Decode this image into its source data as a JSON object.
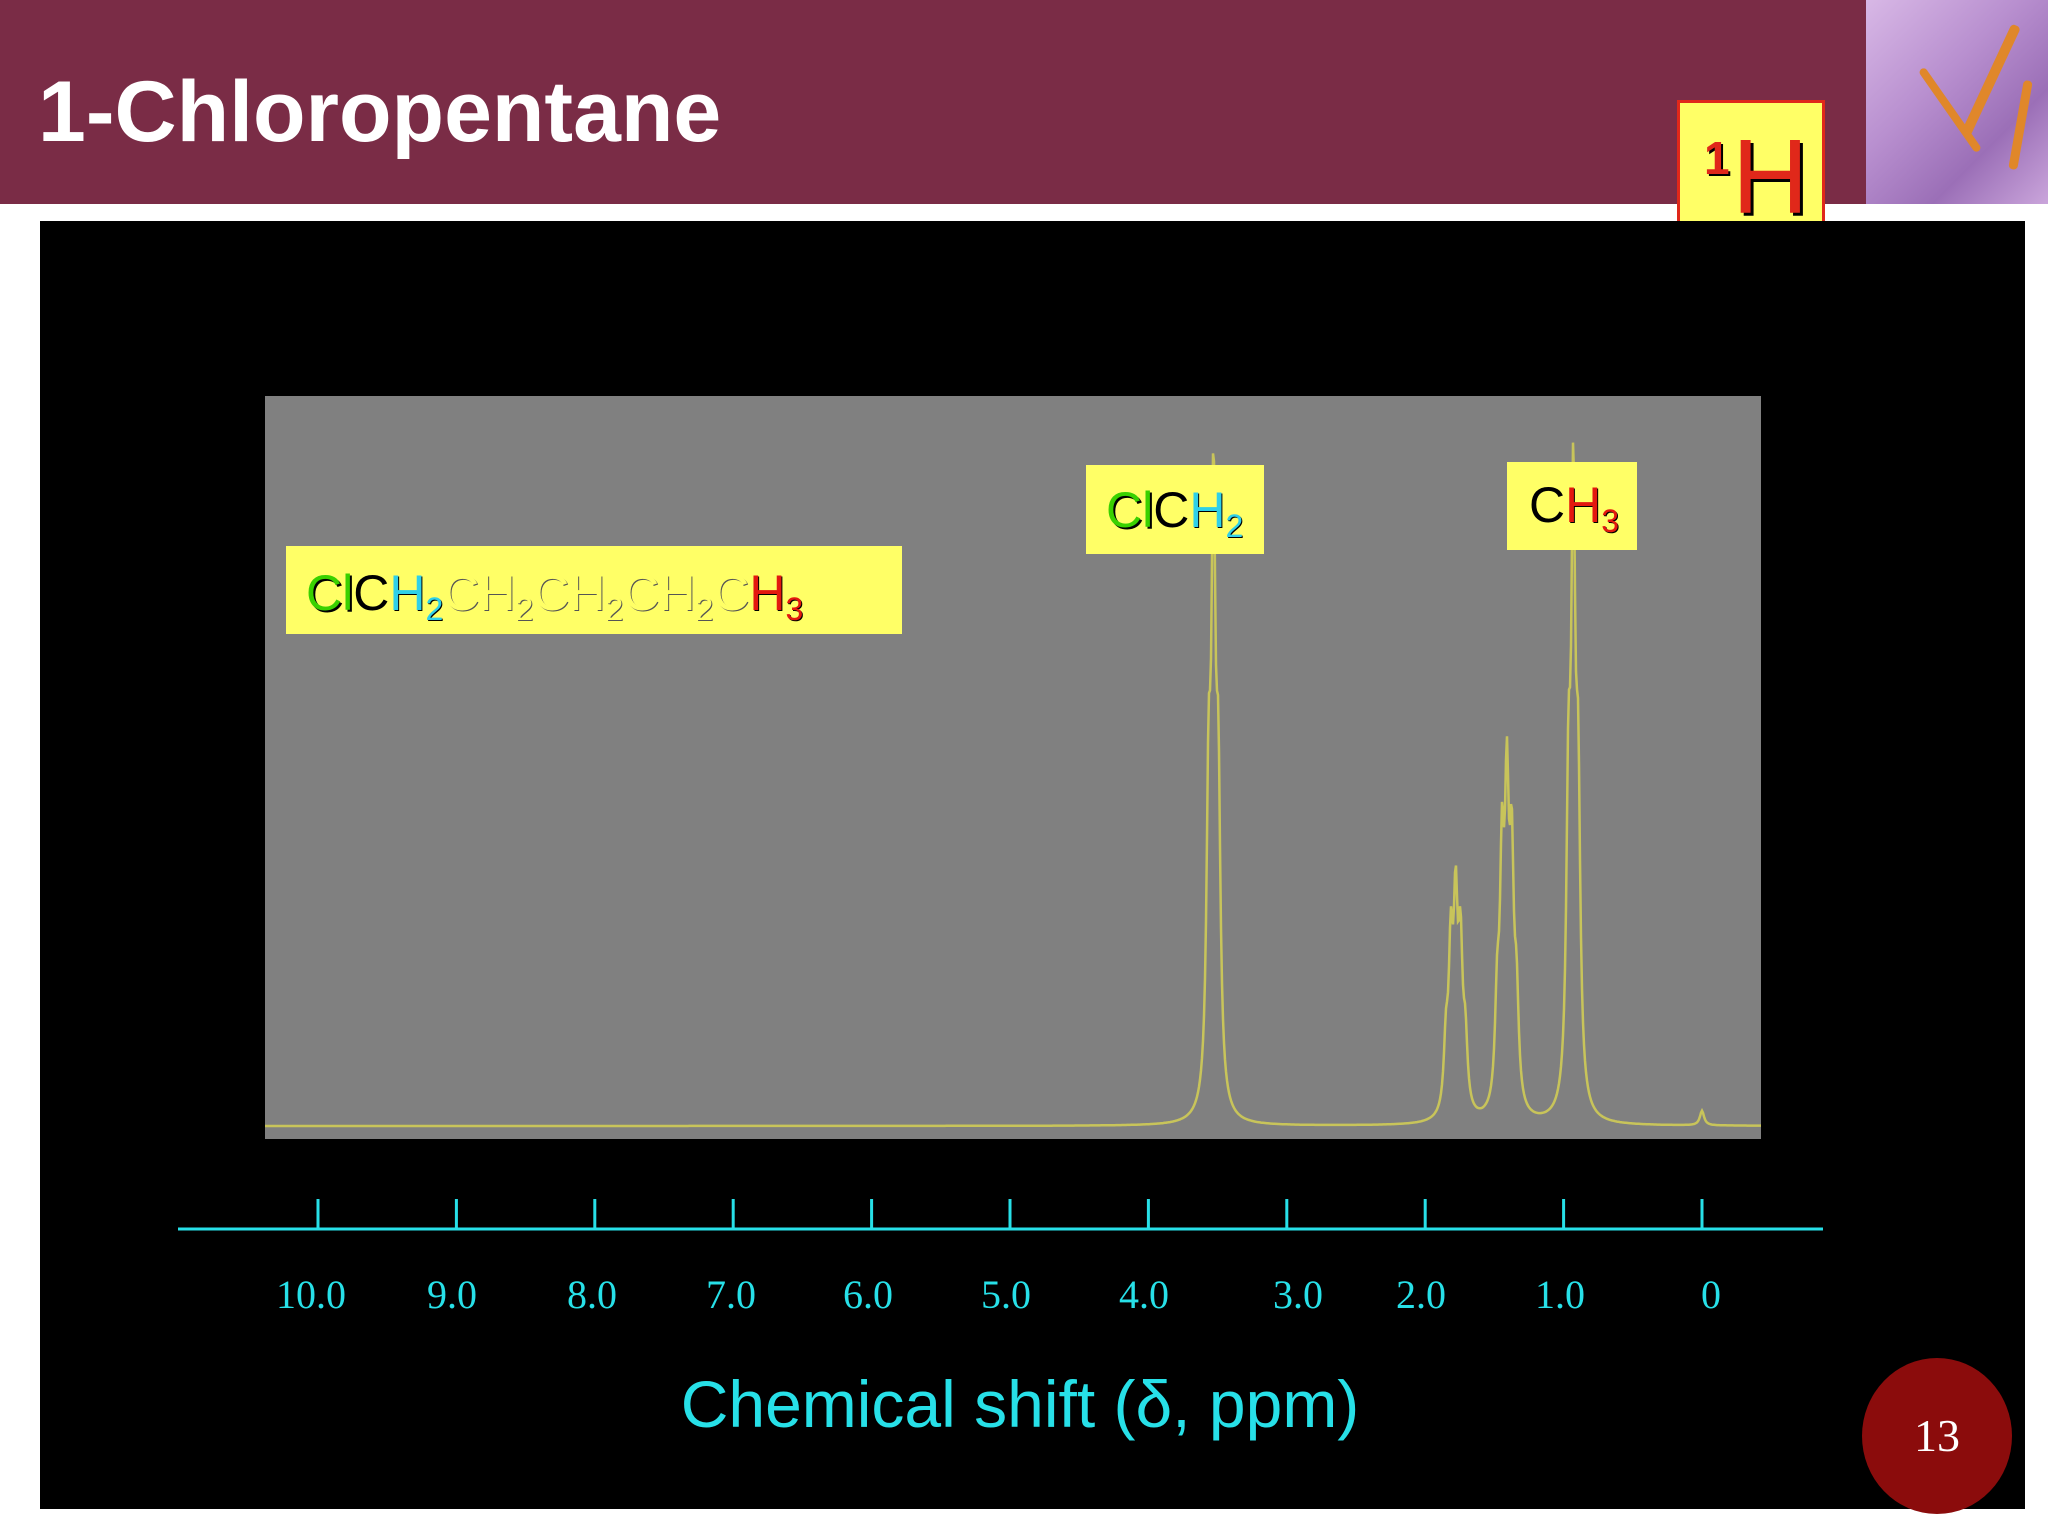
{
  "slide": {
    "title": "1-Chloropentane",
    "page_number": "13",
    "badge": {
      "superscript": "1",
      "symbol": "H"
    }
  },
  "formula_parts": [
    {
      "text": "Cl",
      "color": "green"
    },
    {
      "text": "C",
      "color": "black"
    },
    {
      "text": "H",
      "color": "cyan"
    },
    {
      "sub": "2",
      "color": "cyan"
    },
    {
      "text": "CH",
      "color": "yellow"
    },
    {
      "sub": "2",
      "color": "yellow"
    },
    {
      "text": "CH",
      "color": "yellow"
    },
    {
      "sub": "2",
      "color": "yellow"
    },
    {
      "text": "CH",
      "color": "yellow"
    },
    {
      "sub": "2",
      "color": "yellow"
    },
    {
      "text": "C",
      "color": "yellow"
    },
    {
      "text": "H",
      "color": "red"
    },
    {
      "sub": "3",
      "color": "red"
    }
  ],
  "peak_labels": {
    "clch2": [
      {
        "text": "Cl",
        "color": "green"
      },
      {
        "text": "C",
        "color": "black"
      },
      {
        "text": "H",
        "color": "cyan"
      },
      {
        "sub": "2",
        "color": "cyan"
      }
    ],
    "ch3": [
      {
        "text": "C",
        "color": "black"
      },
      {
        "text": "H",
        "color": "red"
      },
      {
        "sub": "3",
        "color": "red"
      }
    ]
  },
  "colors": {
    "header": "#7a2c46",
    "plot_bg": "#808080",
    "spectrum": "#c8c45a",
    "axis": "#27e0e8",
    "label_bg": "#ffff66",
    "badge_border": "#e0281a",
    "page_circle": "#8b0c0c"
  },
  "chart_data": {
    "type": "line",
    "xlabel": "Chemical shift (δ, ppm)",
    "ylabel": "",
    "title": "",
    "x_reversed": true,
    "xlim": [
      10.5,
      -0.3
    ],
    "ylim": [
      0,
      1
    ],
    "ticks": [
      10.0,
      9.0,
      8.0,
      7.0,
      6.0,
      5.0,
      4.0,
      3.0,
      2.0,
      1.0,
      0
    ],
    "tick_labels": [
      "10.0",
      "9.0",
      "8.0",
      "7.0",
      "6.0",
      "5.0",
      "4.0",
      "3.0",
      "2.0",
      "1.0",
      "0"
    ],
    "grid": false,
    "peaks": [
      {
        "label": "ClCH2",
        "shift": 3.53,
        "multiplicity": "triplet",
        "height": 1.0
      },
      {
        "label": "CH2",
        "shift": 1.78,
        "multiplicity": "multiplet",
        "height": 0.37
      },
      {
        "label": "CH2",
        "shift": 1.41,
        "multiplicity": "multiplet",
        "height": 0.55
      },
      {
        "label": "CH3",
        "shift": 0.93,
        "multiplicity": "triplet",
        "height": 1.0
      },
      {
        "label": "TMS",
        "shift": 0.0,
        "multiplicity": "singlet",
        "height": 0.02
      }
    ]
  }
}
